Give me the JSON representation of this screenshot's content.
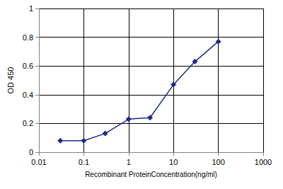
{
  "chart_data": {
    "type": "line",
    "xlabel": "Recombinant ProteinConcentration(ng/ml)",
    "ylabel": "OD 450",
    "x": [
      0.03,
      0.1,
      0.3,
      1,
      3,
      10,
      30,
      100
    ],
    "values": [
      0.08,
      0.08,
      0.13,
      0.23,
      0.24,
      0.47,
      0.63,
      0.77
    ],
    "color": "#1f2a8a",
    "marker": "diamond",
    "line_style": "solid",
    "log": "x",
    "xlim": [
      0.01,
      1000
    ],
    "xticks": [
      0.01,
      0.1,
      1,
      10,
      100,
      1000
    ],
    "ylim": [
      0,
      1
    ],
    "yticks": [
      0,
      0.2,
      0.4,
      0.6,
      0.8,
      1
    ],
    "grid": true
  }
}
